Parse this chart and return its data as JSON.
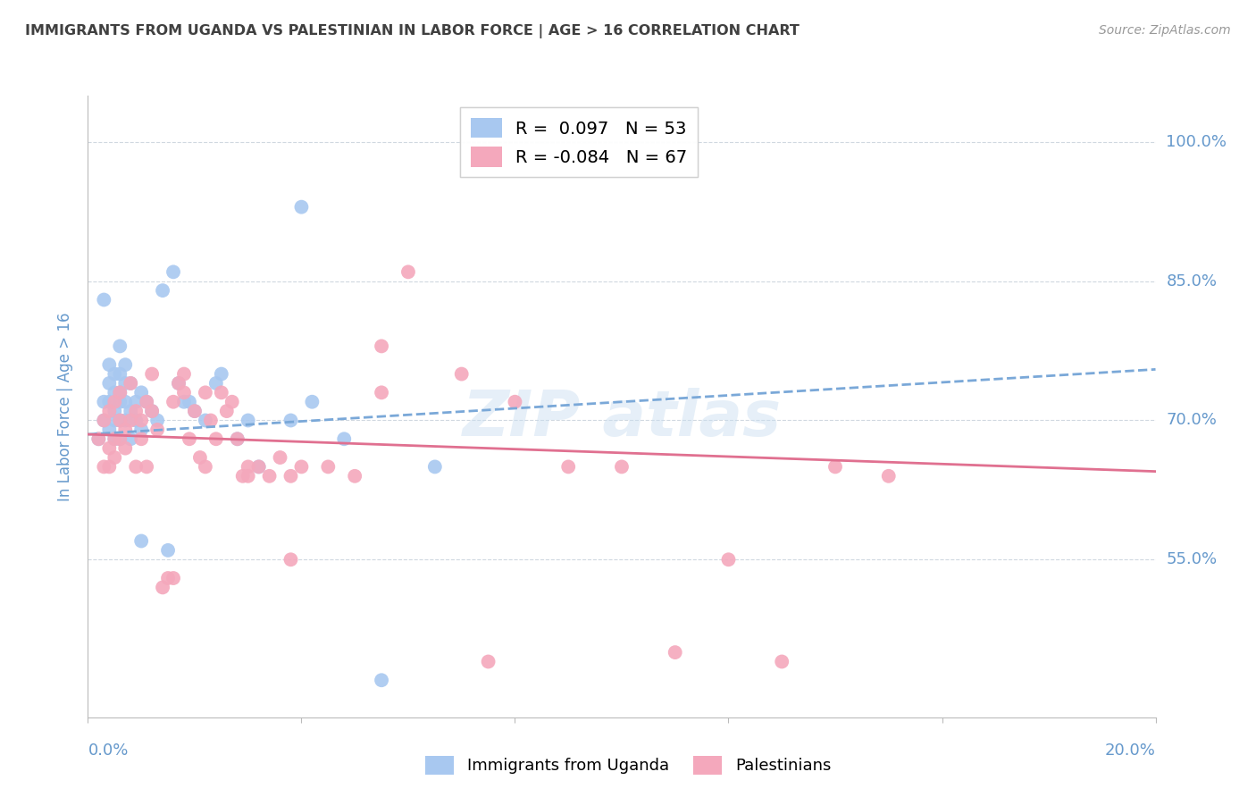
{
  "title": "IMMIGRANTS FROM UGANDA VS PALESTINIAN IN LABOR FORCE | AGE > 16 CORRELATION CHART",
  "source": "Source: ZipAtlas.com",
  "ylabel": "In Labor Force | Age > 16",
  "xlim": [
    0.0,
    0.2
  ],
  "ylim": [
    0.38,
    1.05
  ],
  "yticks": [
    0.55,
    0.7,
    0.85,
    1.0
  ],
  "ytick_labels": [
    "55.0%",
    "70.0%",
    "85.0%",
    "100.0%"
  ],
  "xticks": [
    0.0,
    0.04,
    0.08,
    0.12,
    0.16,
    0.2
  ],
  "xtick_labels": [
    "0.0%",
    "",
    "",
    "",
    "",
    "20.0%"
  ],
  "uganda_color": "#a8c8f0",
  "palestine_color": "#f4a8bc",
  "trendline_uganda_color": "#7aa8d8",
  "trendline_palestine_color": "#e07090",
  "background_color": "#ffffff",
  "grid_color": "#d0d8e0",
  "axis_label_color": "#6699cc",
  "title_color": "#404040",
  "uganda_x": [
    0.002,
    0.003,
    0.003,
    0.003,
    0.004,
    0.004,
    0.004,
    0.004,
    0.005,
    0.005,
    0.005,
    0.005,
    0.005,
    0.006,
    0.006,
    0.006,
    0.006,
    0.006,
    0.006,
    0.007,
    0.007,
    0.007,
    0.007,
    0.008,
    0.008,
    0.008,
    0.009,
    0.009,
    0.01,
    0.01,
    0.011,
    0.012,
    0.013,
    0.015,
    0.017,
    0.019,
    0.022,
    0.025,
    0.028,
    0.032,
    0.04,
    0.055,
    0.065,
    0.03,
    0.02,
    0.016,
    0.014,
    0.018,
    0.024,
    0.038,
    0.042,
    0.048,
    0.01
  ],
  "uganda_y": [
    0.68,
    0.7,
    0.72,
    0.83,
    0.69,
    0.72,
    0.74,
    0.76,
    0.68,
    0.7,
    0.71,
    0.73,
    0.75,
    0.68,
    0.7,
    0.72,
    0.73,
    0.75,
    0.78,
    0.7,
    0.72,
    0.74,
    0.76,
    0.68,
    0.71,
    0.74,
    0.7,
    0.72,
    0.69,
    0.73,
    0.72,
    0.71,
    0.7,
    0.56,
    0.74,
    0.72,
    0.7,
    0.75,
    0.68,
    0.65,
    0.93,
    0.42,
    0.65,
    0.7,
    0.71,
    0.86,
    0.84,
    0.72,
    0.74,
    0.7,
    0.72,
    0.68,
    0.57
  ],
  "palestine_x": [
    0.002,
    0.003,
    0.003,
    0.004,
    0.004,
    0.004,
    0.005,
    0.005,
    0.005,
    0.006,
    0.006,
    0.006,
    0.007,
    0.007,
    0.008,
    0.008,
    0.009,
    0.009,
    0.01,
    0.01,
    0.011,
    0.011,
    0.012,
    0.013,
    0.014,
    0.015,
    0.016,
    0.017,
    0.018,
    0.019,
    0.02,
    0.021,
    0.022,
    0.023,
    0.024,
    0.025,
    0.026,
    0.027,
    0.028,
    0.029,
    0.03,
    0.032,
    0.034,
    0.036,
    0.038,
    0.04,
    0.045,
    0.05,
    0.055,
    0.06,
    0.07,
    0.075,
    0.08,
    0.09,
    0.1,
    0.11,
    0.12,
    0.13,
    0.14,
    0.15,
    0.055,
    0.038,
    0.016,
    0.012,
    0.018,
    0.022,
    0.03
  ],
  "palestine_y": [
    0.68,
    0.65,
    0.7,
    0.67,
    0.71,
    0.65,
    0.68,
    0.72,
    0.66,
    0.7,
    0.68,
    0.73,
    0.69,
    0.67,
    0.74,
    0.7,
    0.71,
    0.65,
    0.7,
    0.68,
    0.72,
    0.65,
    0.71,
    0.69,
    0.52,
    0.53,
    0.72,
    0.74,
    0.73,
    0.68,
    0.71,
    0.66,
    0.73,
    0.7,
    0.68,
    0.73,
    0.71,
    0.72,
    0.68,
    0.64,
    0.65,
    0.65,
    0.64,
    0.66,
    0.64,
    0.65,
    0.65,
    0.64,
    0.73,
    0.86,
    0.75,
    0.44,
    0.72,
    0.65,
    0.65,
    0.45,
    0.55,
    0.44,
    0.65,
    0.64,
    0.78,
    0.55,
    0.53,
    0.75,
    0.75,
    0.65,
    0.64
  ]
}
